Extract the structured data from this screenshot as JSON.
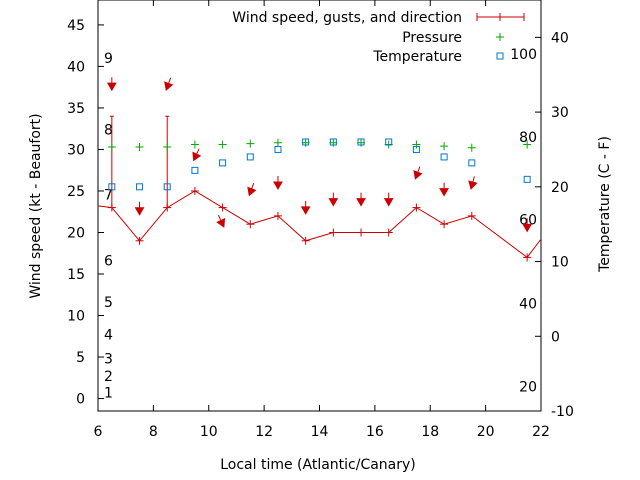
{
  "chart_data": {
    "type": "line",
    "xlabel": "Local time (Atlantic/Canary)",
    "ylabel_left": "Wind speed (kt - Beaufort)",
    "ylabel_right": "Temperature (C - F)",
    "x_range": [
      6,
      22
    ],
    "x_ticks": [
      6,
      8,
      10,
      12,
      14,
      16,
      18,
      20,
      22
    ],
    "y_left_range": [
      -1.5,
      48
    ],
    "y_left_ticks": [
      0,
      5,
      10,
      15,
      20,
      25,
      30,
      35,
      40,
      45
    ],
    "y_right_range": [
      -10,
      45
    ],
    "y_right_ticks": [
      -10,
      0,
      10,
      20,
      30,
      40
    ],
    "beaufort_labels": [
      {
        "label": "1",
        "value": 0.7
      },
      {
        "label": "2",
        "value": 2.7
      },
      {
        "label": "3",
        "value": 4.8
      },
      {
        "label": "4",
        "value": 7.7
      },
      {
        "label": "5",
        "value": 11.6
      },
      {
        "label": "6",
        "value": 16.6
      },
      {
        "label": "7",
        "value": 24.6
      },
      {
        "label": "8",
        "value": 32.4
      },
      {
        "label": "9",
        "value": 41.0
      }
    ],
    "fahrenheit_labels": [
      {
        "label": "20",
        "value": -6.7
      },
      {
        "label": "40",
        "value": 4.4
      },
      {
        "label": "60",
        "value": 15.6
      },
      {
        "label": "80",
        "value": 26.7
      },
      {
        "label": "100",
        "value": 37.8
      }
    ],
    "legend": {
      "placement": "top-right",
      "entries": [
        "Wind speed, gusts, and direction",
        "Pressure",
        "Temperature"
      ]
    },
    "series": [
      {
        "name": "Wind speed, gusts, and direction",
        "color": "#cc0000",
        "points": [
          {
            "x": 6.0,
            "y": 23.2
          },
          {
            "x": 6.5,
            "y": 23,
            "gust": 34
          },
          {
            "x": 7.5,
            "y": 19
          },
          {
            "x": 8.5,
            "y": 23,
            "gust": 34
          },
          {
            "x": 9.5,
            "y": 25
          },
          {
            "x": 10.5,
            "y": 23
          },
          {
            "x": 11.5,
            "y": 21
          },
          {
            "x": 12.5,
            "y": 22
          },
          {
            "x": 13.5,
            "y": 19
          },
          {
            "x": 14.5,
            "y": 20
          },
          {
            "x": 15.5,
            "y": 20
          },
          {
            "x": 16.5,
            "y": 20
          },
          {
            "x": 17.5,
            "y": 23
          },
          {
            "x": 18.5,
            "y": 21
          },
          {
            "x": 19.5,
            "y": 22
          },
          {
            "x": 21.5,
            "y": 17
          },
          {
            "x": 22.0,
            "y": 19.2
          }
        ],
        "direction_arrows": [
          {
            "x": 6.5,
            "y": 37.5,
            "angle": 0
          },
          {
            "x": 7.5,
            "y": 22.5,
            "angle": 0
          },
          {
            "x": 8.5,
            "y": 37.5,
            "angle": 20
          },
          {
            "x": 9.5,
            "y": 29,
            "angle": 25
          },
          {
            "x": 10.5,
            "y": 21,
            "angle": -25
          },
          {
            "x": 11.5,
            "y": 24.8,
            "angle": 20
          },
          {
            "x": 12.5,
            "y": 25.6,
            "angle": 0
          },
          {
            "x": 13.5,
            "y": 22.6,
            "angle": 0
          },
          {
            "x": 14.5,
            "y": 23.6,
            "angle": 0
          },
          {
            "x": 15.5,
            "y": 23.6,
            "angle": 0
          },
          {
            "x": 16.5,
            "y": 23.6,
            "angle": 0
          },
          {
            "x": 17.5,
            "y": 26.8,
            "angle": 20
          },
          {
            "x": 18.5,
            "y": 24.8,
            "angle": 0
          },
          {
            "x": 19.5,
            "y": 25.6,
            "angle": 15
          },
          {
            "x": 21.5,
            "y": 20.5,
            "angle": 0
          }
        ]
      },
      {
        "name": "Pressure",
        "color": "#00aa00",
        "points": [
          {
            "x": 6.5,
            "y": 30.3
          },
          {
            "x": 7.5,
            "y": 30.3
          },
          {
            "x": 8.5,
            "y": 30.3
          },
          {
            "x": 9.5,
            "y": 30.6
          },
          {
            "x": 10.5,
            "y": 30.6
          },
          {
            "x": 11.5,
            "y": 30.7
          },
          {
            "x": 12.5,
            "y": 30.8
          },
          {
            "x": 13.5,
            "y": 30.8
          },
          {
            "x": 14.5,
            "y": 30.8
          },
          {
            "x": 15.5,
            "y": 30.8
          },
          {
            "x": 16.5,
            "y": 30.6
          },
          {
            "x": 17.5,
            "y": 30.6
          },
          {
            "x": 18.5,
            "y": 30.4
          },
          {
            "x": 19.5,
            "y": 30.2
          },
          {
            "x": 21.5,
            "y": 30.6
          }
        ]
      },
      {
        "name": "Temperature",
        "color": "#0077cc",
        "points": [
          {
            "x": 6.5,
            "y": 20
          },
          {
            "x": 7.5,
            "y": 20
          },
          {
            "x": 8.5,
            "y": 20
          },
          {
            "x": 9.5,
            "y": 22.2
          },
          {
            "x": 10.5,
            "y": 23.2
          },
          {
            "x": 11.5,
            "y": 24.0
          },
          {
            "x": 12.5,
            "y": 25.0
          },
          {
            "x": 13.5,
            "y": 26.0
          },
          {
            "x": 14.5,
            "y": 26.0
          },
          {
            "x": 15.5,
            "y": 26.0
          },
          {
            "x": 16.5,
            "y": 26.0
          },
          {
            "x": 17.5,
            "y": 25.0
          },
          {
            "x": 18.5,
            "y": 24.0
          },
          {
            "x": 19.5,
            "y": 23.2
          },
          {
            "x": 21.5,
            "y": 21.0
          }
        ]
      }
    ]
  }
}
